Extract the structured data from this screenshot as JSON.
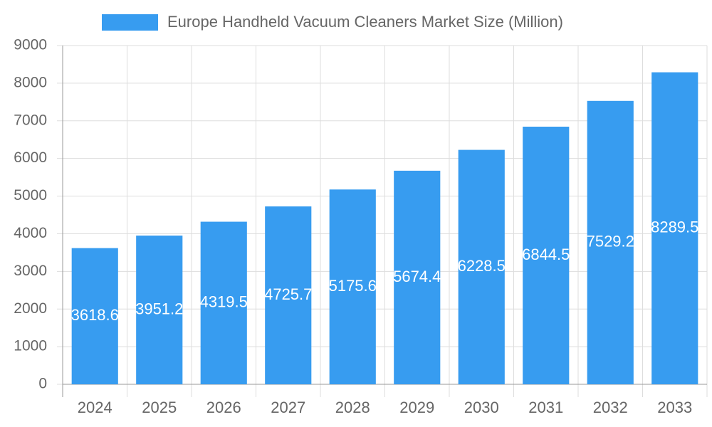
{
  "chart_data": {
    "type": "bar",
    "categories": [
      "2024",
      "2025",
      "2026",
      "2027",
      "2028",
      "2029",
      "2030",
      "2031",
      "2032",
      "2033"
    ],
    "series": [
      {
        "name": "Europe Handheld Vacuum Cleaners Market Size (Million)",
        "color": "#379cf0",
        "values": [
          3618.6,
          3951.2,
          4319.5,
          4725.7,
          5175.6,
          5674.4,
          6228.5,
          6844.5,
          7529.2,
          8289.5
        ]
      }
    ],
    "ylim": [
      0,
      9000
    ],
    "yticks": [
      0,
      1000,
      2000,
      3000,
      4000,
      5000,
      6000,
      7000,
      8000,
      9000
    ],
    "grid": true,
    "legend": "top"
  }
}
